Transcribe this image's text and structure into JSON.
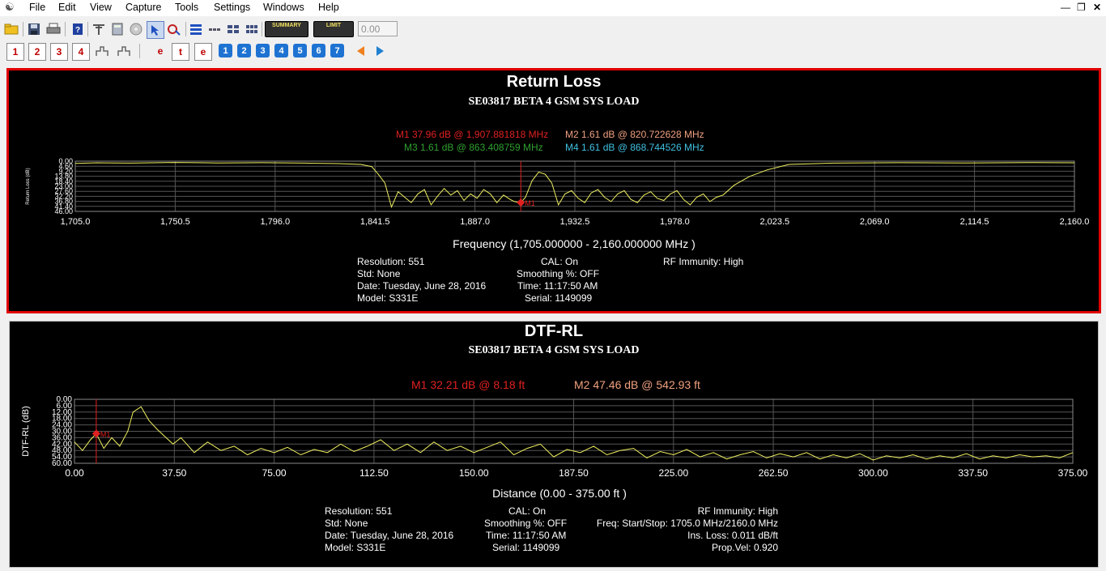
{
  "menu": [
    "File",
    "Edit",
    "View",
    "Capture",
    "Tools",
    "Settings",
    "Windows",
    "Help"
  ],
  "toolbar": {
    "summary_label": "SUMMARY",
    "limit_label": "LIMIT",
    "value_field": "0.00",
    "marker_buttons": [
      "1",
      "2",
      "3",
      "4"
    ],
    "number_buttons": [
      "1",
      "2",
      "3",
      "4",
      "5",
      "6",
      "7"
    ],
    "e_label": "e",
    "t_label": "t"
  },
  "panel1": {
    "title": "Return Loss",
    "subtitle": "SE03817 BETA 4 GSM SYS LOAD",
    "markers": [
      {
        "text": "M1  37.96 dB @ 1,907.881818 MHz",
        "color": "#e02020"
      },
      {
        "text": "M2  1.61 dB @ 820.722628 MHz",
        "color": "#f0a080"
      },
      {
        "text": "M3  1.61 dB @ 863.408759 MHz",
        "color": "#30a030"
      },
      {
        "text": "M4  1.61 dB @ 868.744526 MHz",
        "color": "#40c0e0"
      }
    ],
    "xaxis_title": "Frequency (1,705.000000 - 2,160.000000 MHz )",
    "yaxis_title": "Return Loss (dB)",
    "info": {
      "resolution": "Resolution: 551",
      "std": "Std: None",
      "date": "Date: Tuesday, June 28, 2016",
      "model": "Model: S331E",
      "cal": "CAL: On",
      "smoothing": "Smoothing %:  OFF",
      "time": "Time: 11:17:50 AM",
      "serial": "Serial: 1149099",
      "rf": "RF Immunity: High"
    }
  },
  "panel2": {
    "title": "DTF-RL",
    "subtitle": "SE03817 BETA 4 GSM SYS LOAD",
    "markers": [
      {
        "text": "M1  32.21 dB @ 8.18  ft",
        "color": "#e02020"
      },
      {
        "text": "M2  47.46 dB @ 542.93  ft",
        "color": "#f0a080"
      }
    ],
    "xaxis_title": "Distance (0.00 - 375.00  ft )",
    "yaxis_title": "DTF-RL (dB)",
    "info": {
      "resolution": "Resolution: 551",
      "std": "Std: None",
      "date": "Date: Tuesday, June 28, 2016",
      "model": "Model: S331E",
      "cal": "CAL: On",
      "smoothing": "Smoothing %:  OFF",
      "time": "Time: 11:17:50 AM",
      "serial": "Serial: 1149099",
      "rf": "RF Immunity: High",
      "freq": "Freq: Start/Stop: 1705.0 MHz/2160.0 MHz",
      "insloss": "Ins. Loss: 0.011 dB/ft",
      "propvel": "Prop.Vel: 0.920"
    }
  },
  "chart_data": [
    {
      "type": "line",
      "title": "Return Loss",
      "xlabel": "Frequency (1,705.000000 - 2,160.000000 MHz )",
      "ylabel": "Return Loss (dB)",
      "xlim": [
        1705.0,
        2160.0
      ],
      "ylim": [
        0.0,
        46.0
      ],
      "y_inverted": true,
      "xticks": [
        "1,705.0",
        "1,750.5",
        "1,796.0",
        "1,841.5",
        "1,887.0",
        "1,932.5",
        "1,978.0",
        "2,023.5",
        "2,069.0",
        "2,114.5",
        "2,160.0"
      ],
      "yticks": [
        "0.00",
        "4.60",
        "9.20",
        "13.80",
        "18.40",
        "23.00",
        "27.60",
        "32.20",
        "36.80",
        "41.40",
        "46.00"
      ],
      "line_color": "#f0f060",
      "grid": true,
      "series": [
        {
          "x": [
            1705,
            1715,
            1730,
            1750,
            1770,
            1790,
            1810,
            1825,
            1835,
            1840,
            1843,
            1846,
            1849,
            1852,
            1855,
            1858,
            1861,
            1864,
            1867,
            1870,
            1873,
            1876,
            1879,
            1882,
            1885,
            1888,
            1891,
            1894,
            1897,
            1900,
            1903,
            1905,
            1907.9,
            1910,
            1913,
            1916,
            1919,
            1922,
            1925,
            1928,
            1931,
            1934,
            1937,
            1940,
            1943,
            1946,
            1949,
            1952,
            1955,
            1958,
            1961,
            1964,
            1967,
            1970,
            1973,
            1976,
            1979,
            1982,
            1985,
            1988,
            1991,
            1994,
            1997,
            2000,
            2005,
            2012,
            2020,
            2030,
            2050,
            2080,
            2110,
            2140,
            2160
          ],
          "y": [
            2,
            1.5,
            1.8,
            1.2,
            1.6,
            1.4,
            1.8,
            2.2,
            3,
            5,
            12,
            20,
            42,
            28,
            33,
            38,
            30,
            26,
            40,
            32,
            25,
            31,
            27,
            36,
            30,
            34,
            26,
            30,
            38,
            31,
            35,
            37,
            37.96,
            33,
            18,
            10,
            12,
            20,
            40,
            30,
            27,
            34,
            38,
            29,
            26,
            33,
            37,
            30,
            27,
            35,
            38,
            31,
            28,
            34,
            36,
            30,
            27,
            35,
            40,
            33,
            30,
            37,
            33,
            31,
            22,
            14,
            8,
            3,
            1.8,
            1.4,
            1.6,
            1.3,
            1.5
          ]
        }
      ],
      "markers": [
        {
          "name": "M1",
          "x": 1907.881818,
          "y": 37.96
        }
      ]
    },
    {
      "type": "line",
      "title": "DTF-RL",
      "xlabel": "Distance (0.00 - 375.00  ft )",
      "ylabel": "DTF-RL (dB)",
      "xlim": [
        0.0,
        375.0
      ],
      "ylim": [
        0.0,
        60.0
      ],
      "y_inverted": true,
      "xticks": [
        "0.00",
        "37.50",
        "75.00",
        "112.50",
        "150.00",
        "187.50",
        "225.00",
        "262.50",
        "300.00",
        "337.50",
        "375.00"
      ],
      "yticks": [
        "0.00",
        "6.00",
        "12.00",
        "18.00",
        "24.00",
        "30.00",
        "36.00",
        "42.00",
        "48.00",
        "54.00",
        "60.00"
      ],
      "line_color": "#f0f060",
      "grid": true,
      "series": [
        {
          "x": [
            0,
            3,
            6,
            8.18,
            11,
            14,
            17,
            20,
            22,
            25,
            28,
            31,
            34,
            37,
            40,
            45,
            50,
            55,
            60,
            65,
            70,
            75,
            80,
            85,
            90,
            95,
            100,
            105,
            110,
            115,
            120,
            125,
            130,
            135,
            140,
            145,
            150,
            155,
            160,
            165,
            170,
            175,
            180,
            185,
            190,
            195,
            200,
            205,
            210,
            215,
            220,
            225,
            230,
            235,
            240,
            245,
            250,
            255,
            260,
            265,
            270,
            275,
            280,
            285,
            290,
            295,
            300,
            305,
            310,
            315,
            320,
            325,
            330,
            335,
            340,
            345,
            350,
            355,
            360,
            365,
            370,
            375
          ],
          "y": [
            40,
            48,
            38,
            32.21,
            46,
            36,
            44,
            30,
            12,
            7,
            20,
            28,
            35,
            42,
            36,
            50,
            40,
            48,
            44,
            52,
            46,
            50,
            45,
            52,
            47,
            50,
            42,
            49,
            44,
            38,
            48,
            42,
            50,
            40,
            48,
            44,
            50,
            45,
            40,
            52,
            46,
            42,
            54,
            47,
            50,
            44,
            52,
            48,
            46,
            55,
            49,
            52,
            47,
            54,
            50,
            56,
            52,
            49,
            55,
            51,
            54,
            50,
            56,
            52,
            55,
            51,
            57,
            53,
            55,
            52,
            56,
            53,
            55,
            51,
            56,
            53,
            55,
            52,
            54,
            53,
            55,
            50
          ]
        }
      ],
      "markers": [
        {
          "name": "M1",
          "x": 8.18,
          "y": 32.21
        }
      ]
    }
  ]
}
